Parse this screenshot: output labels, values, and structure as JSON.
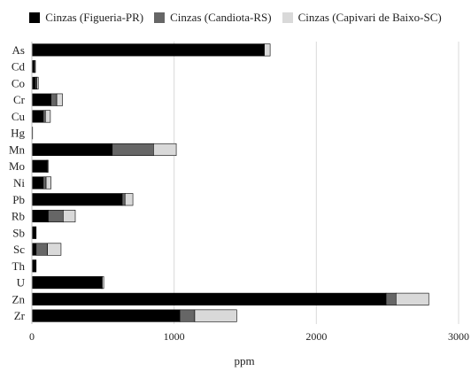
{
  "chart_data": {
    "type": "bar",
    "orientation": "horizontal",
    "stacked": true,
    "categories": [
      "As",
      "Cd",
      "Co",
      "Cr",
      "Cu",
      "Hg",
      "Mn",
      "Mo",
      "Ni",
      "Pb",
      "Rb",
      "Sb",
      "Sc",
      "Th",
      "U",
      "Zn",
      "Zr"
    ],
    "series": [
      {
        "name": "Cinzas (Figueria-PR)",
        "color": "#000000",
        "values": [
          1630,
          15,
          25,
          135,
          80,
          5,
          565,
          105,
          80,
          635,
          115,
          30,
          30,
          30,
          490,
          2490,
          1040
        ]
      },
      {
        "name": "Cinzas (Candiota-RS)",
        "color": "#666666",
        "values": [
          5,
          5,
          10,
          40,
          15,
          0,
          290,
          5,
          20,
          20,
          105,
          0,
          80,
          0,
          5,
          70,
          105
        ]
      },
      {
        "name": "Cinzas (Capivari de Baixo-SC)",
        "color": "#d9d9d9",
        "values": [
          40,
          5,
          10,
          40,
          35,
          0,
          160,
          5,
          35,
          55,
          85,
          0,
          95,
          0,
          10,
          230,
          295
        ]
      }
    ],
    "xlabel": "ppm",
    "xlim": [
      0,
      3000
    ],
    "xticks": [
      "0",
      "1000",
      "2000",
      "3000"
    ],
    "grid": true,
    "legend_position": "top"
  }
}
